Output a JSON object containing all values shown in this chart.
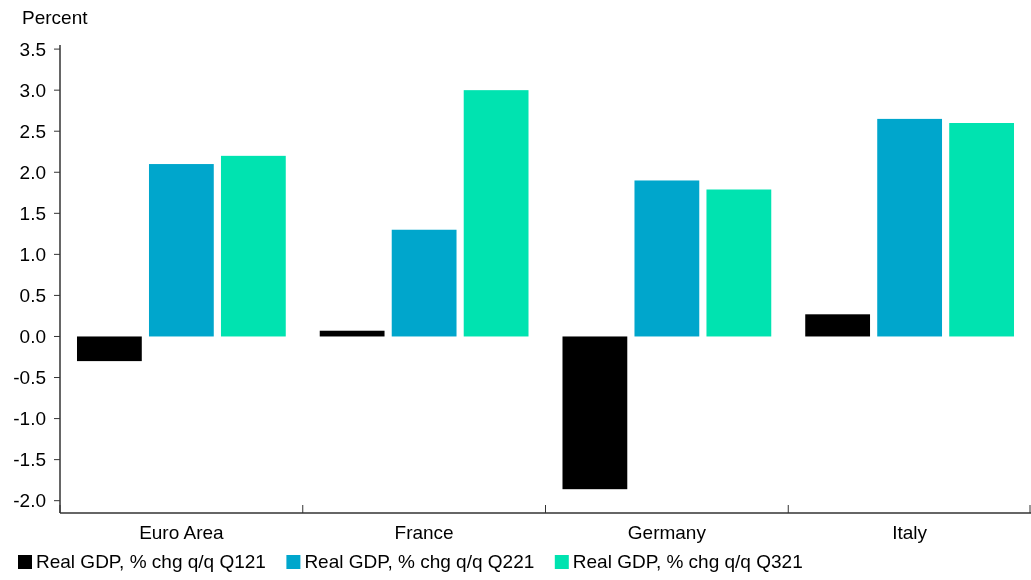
{
  "chart_data": {
    "type": "bar",
    "ylabel": "Percent",
    "categories": [
      "Euro Area",
      "France",
      "Germany",
      "Italy"
    ],
    "series": [
      {
        "name": "Real GDP, % chg q/q Q121",
        "color": "#000000",
        "values": [
          -0.3,
          0.07,
          -1.86,
          0.27
        ]
      },
      {
        "name": "Real GDP, % chg q/q Q221",
        "color": "#00a6cc",
        "values": [
          2.1,
          1.3,
          1.9,
          2.65
        ]
      },
      {
        "name": "Real GDP, % chg q/q Q321",
        "color": "#00e3b0",
        "values": [
          2.2,
          3.0,
          1.79,
          2.6
        ]
      }
    ],
    "ylim": [
      -2.15,
      3.55
    ],
    "yticks": [
      {
        "value": -2,
        "label": "-2.0"
      },
      {
        "value": -1.5,
        "label": "-1.5"
      },
      {
        "value": -1,
        "label": "-1.0"
      },
      {
        "value": -0.5,
        "label": "-0.5"
      },
      {
        "value": 0,
        "label": "0.0"
      },
      {
        "value": 0.5,
        "label": "0.5"
      },
      {
        "value": 1,
        "label": "1.0"
      },
      {
        "value": 1.5,
        "label": "1.5"
      },
      {
        "value": 2,
        "label": "2.0"
      },
      {
        "value": 2.5,
        "label": "2.5"
      },
      {
        "value": 3,
        "label": "3.0"
      },
      {
        "value": 3.5,
        "label": "3.5"
      }
    ],
    "grid": false,
    "legend": "bottom"
  }
}
